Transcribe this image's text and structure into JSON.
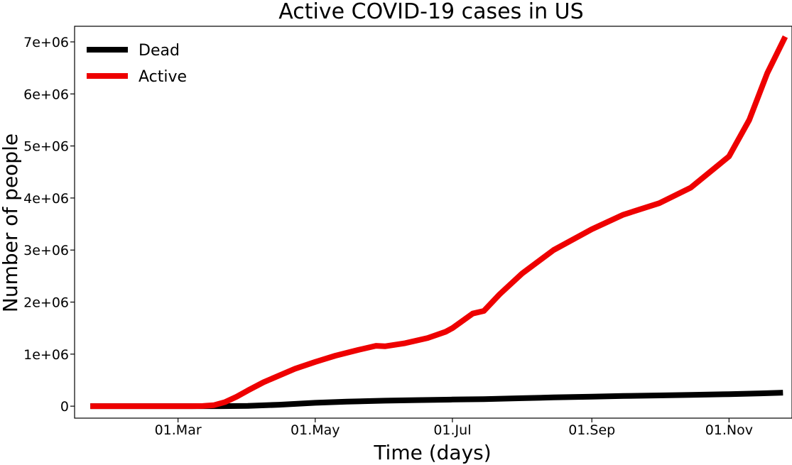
{
  "chart_data": {
    "type": "line",
    "title": "Active COVID-19 cases in US",
    "xlabel": "Time (days)",
    "ylabel": "Number of people",
    "x_ticks": [
      {
        "date": "2020-03-01",
        "label": "01.Mar"
      },
      {
        "date": "2020-05-01",
        "label": "01.May"
      },
      {
        "date": "2020-07-01",
        "label": "01.Jul"
      },
      {
        "date": "2020-09-01",
        "label": "01.Sep"
      },
      {
        "date": "2020-11-01",
        "label": "01.Nov"
      }
    ],
    "y_ticks": [
      {
        "value": 0,
        "label": "0"
      },
      {
        "value": 1000000,
        "label": "1e+06"
      },
      {
        "value": 2000000,
        "label": "2e+06"
      },
      {
        "value": 3000000,
        "label": "3e+06"
      },
      {
        "value": 4000000,
        "label": "4e+06"
      },
      {
        "value": 5000000,
        "label": "5e+06"
      },
      {
        "value": 6000000,
        "label": "6e+06"
      },
      {
        "value": 7000000,
        "label": "7e+06"
      }
    ],
    "xlim": [
      "2020-01-15",
      "2020-11-29"
    ],
    "ylim": [
      -230000,
      7300000
    ],
    "grid": false,
    "legend_position": "top-left",
    "series": [
      {
        "name": "Dead",
        "color": "#000000",
        "points": [
          {
            "x": "2020-01-22",
            "y": 0
          },
          {
            "x": "2020-03-10",
            "y": 0
          },
          {
            "x": "2020-03-20",
            "y": 200
          },
          {
            "x": "2020-04-01",
            "y": 5000
          },
          {
            "x": "2020-04-15",
            "y": 28000
          },
          {
            "x": "2020-05-01",
            "y": 65000
          },
          {
            "x": "2020-05-15",
            "y": 87000
          },
          {
            "x": "2020-06-01",
            "y": 105000
          },
          {
            "x": "2020-06-15",
            "y": 116000
          },
          {
            "x": "2020-07-01",
            "y": 127000
          },
          {
            "x": "2020-07-15",
            "y": 136000
          },
          {
            "x": "2020-08-01",
            "y": 154000
          },
          {
            "x": "2020-08-15",
            "y": 168000
          },
          {
            "x": "2020-09-01",
            "y": 184000
          },
          {
            "x": "2020-09-15",
            "y": 195000
          },
          {
            "x": "2020-10-01",
            "y": 207000
          },
          {
            "x": "2020-10-15",
            "y": 217000
          },
          {
            "x": "2020-11-01",
            "y": 231000
          },
          {
            "x": "2020-11-15",
            "y": 246000
          },
          {
            "x": "2020-11-25",
            "y": 260000
          }
        ]
      },
      {
        "name": "Active",
        "color": "#ee0000",
        "points": [
          {
            "x": "2020-01-22",
            "y": 0
          },
          {
            "x": "2020-03-07",
            "y": 0
          },
          {
            "x": "2020-03-12",
            "y": 3000
          },
          {
            "x": "2020-03-17",
            "y": 20000
          },
          {
            "x": "2020-03-22",
            "y": 80000
          },
          {
            "x": "2020-03-27",
            "y": 180000
          },
          {
            "x": "2020-04-01",
            "y": 300000
          },
          {
            "x": "2020-04-08",
            "y": 460000
          },
          {
            "x": "2020-04-15",
            "y": 590000
          },
          {
            "x": "2020-04-22",
            "y": 720000
          },
          {
            "x": "2020-05-01",
            "y": 850000
          },
          {
            "x": "2020-05-10",
            "y": 970000
          },
          {
            "x": "2020-05-20",
            "y": 1080000
          },
          {
            "x": "2020-05-28",
            "y": 1160000
          },
          {
            "x": "2020-06-01",
            "y": 1150000
          },
          {
            "x": "2020-06-10",
            "y": 1210000
          },
          {
            "x": "2020-06-20",
            "y": 1310000
          },
          {
            "x": "2020-06-28",
            "y": 1430000
          },
          {
            "x": "2020-07-01",
            "y": 1500000
          },
          {
            "x": "2020-07-10",
            "y": 1780000
          },
          {
            "x": "2020-07-15",
            "y": 1830000
          },
          {
            "x": "2020-07-22",
            "y": 2150000
          },
          {
            "x": "2020-08-01",
            "y": 2550000
          },
          {
            "x": "2020-08-15",
            "y": 3000000
          },
          {
            "x": "2020-09-01",
            "y": 3400000
          },
          {
            "x": "2020-09-15",
            "y": 3680000
          },
          {
            "x": "2020-10-01",
            "y": 3900000
          },
          {
            "x": "2020-10-15",
            "y": 4200000
          },
          {
            "x": "2020-11-01",
            "y": 4800000
          },
          {
            "x": "2020-11-10",
            "y": 5500000
          },
          {
            "x": "2020-11-18",
            "y": 6400000
          },
          {
            "x": "2020-11-26",
            "y": 7100000
          }
        ]
      }
    ]
  }
}
